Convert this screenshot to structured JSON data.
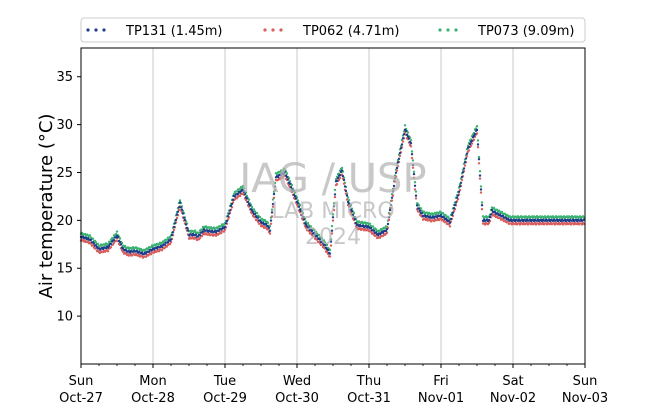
{
  "chart_data": {
    "type": "scatter",
    "title": "",
    "xlabel": "",
    "ylabel": "Air temperature (°C)",
    "xlim": [
      "2024-10-27",
      "2024-11-03"
    ],
    "ylim": [
      5,
      38
    ],
    "yticks": [
      10,
      15,
      20,
      25,
      30,
      35
    ],
    "xticks": [
      {
        "date": "2024-10-27",
        "line1": "Sun",
        "line2": "Oct-27"
      },
      {
        "date": "2024-10-28",
        "line1": "Mon",
        "line2": "Oct-28"
      },
      {
        "date": "2024-10-29",
        "line1": "Tue",
        "line2": "Oct-29"
      },
      {
        "date": "2024-10-30",
        "line1": "Wed",
        "line2": "Oct-30"
      },
      {
        "date": "2024-10-31",
        "line1": "Thu",
        "line2": "Oct-31"
      },
      {
        "date": "2024-11-01",
        "line1": "Fri",
        "line2": "Nov-01"
      },
      {
        "date": "2024-11-02",
        "line1": "Sat",
        "line2": "Nov-02"
      },
      {
        "date": "2024-11-03",
        "line1": "Sun",
        "line2": "Nov-03"
      }
    ],
    "grid": "vertical",
    "legend_position": "top",
    "series": [
      {
        "name": "TP131 (1.45m)",
        "color": "#1f3e8c",
        "x": [
          "2024-10-27 00:00",
          "2024-10-27 03:00",
          "2024-10-27 06:00",
          "2024-10-27 09:00",
          "2024-10-27 12:00",
          "2024-10-27 14:00",
          "2024-10-27 16:00",
          "2024-10-27 18:00",
          "2024-10-27 21:00",
          "2024-10-28 00:00",
          "2024-10-28 03:00",
          "2024-10-28 06:00",
          "2024-10-28 09:00",
          "2024-10-28 12:00",
          "2024-10-28 14:00",
          "2024-10-28 15:00",
          "2024-10-28 17:00",
          "2024-10-28 18:00",
          "2024-10-28 21:00",
          "2024-10-29 00:00",
          "2024-10-29 03:00",
          "2024-10-29 06:00",
          "2024-10-29 09:00",
          "2024-10-29 12:00",
          "2024-10-29 14:00",
          "2024-10-29 15:00",
          "2024-10-29 17:00",
          "2024-10-29 20:00",
          "2024-10-30 00:00",
          "2024-10-30 03:00",
          "2024-10-30 06:00",
          "2024-10-30 09:00",
          "2024-10-30 11:00",
          "2024-10-30 13:00",
          "2024-10-30 15:00",
          "2024-10-30 17:00",
          "2024-10-30 20:00",
          "2024-10-31 00:00",
          "2024-10-31 03:00",
          "2024-10-31 06:00",
          "2024-10-31 09:00",
          "2024-10-31 12:00",
          "2024-10-31 14:00",
          "2024-10-31 16:00",
          "2024-10-31 18:00",
          "2024-10-31 21:00",
          "2024-11-01 00:00",
          "2024-11-01 03:00",
          "2024-11-01 06:00",
          "2024-11-01 09:00",
          "2024-11-01 12:00",
          "2024-11-01 14:00",
          "2024-11-01 16:00",
          "2024-11-01 17:00",
          "2024-11-01 18:00",
          "2024-11-01 20:00",
          "2024-11-01 23:00",
          "2024-11-02 02:00",
          "2024-11-02 05:00",
          "2024-11-02 08:00",
          "2024-11-02 11:00",
          "2024-11-02 13:00",
          "2024-11-02 15:00",
          "2024-11-02 16:00",
          "2024-11-02 17:00",
          "2024-11-02 19:00",
          "2024-11-02 23:00",
          "2024-11-03 00:00"
        ],
        "y": [
          18.3,
          18.0,
          17.0,
          17.2,
          18.4,
          17.0,
          16.7,
          16.8,
          16.5,
          17.0,
          17.3,
          18.0,
          21.8,
          18.5,
          18.5,
          18.3,
          19.0,
          18.9,
          18.8,
          19.3,
          22.5,
          23.2,
          21.0,
          19.8,
          19.5,
          19.0,
          24.5,
          25.0,
          22.0,
          19.5,
          18.5,
          17.5,
          16.5,
          24.0,
          25.2,
          22.0,
          19.5,
          19.3,
          18.5,
          19.0,
          25.0,
          29.5,
          28.0,
          21.5,
          20.5,
          20.3,
          20.5,
          19.8,
          23.0,
          27.5,
          29.5,
          20.0,
          20.0,
          21.0,
          20.8,
          20.5,
          20.0,
          20.0,
          20.0,
          20.0,
          20.0,
          20.0,
          20.0,
          20.0,
          20.0,
          20.0,
          20.0,
          20.0
        ],
        "y_note": ""
      },
      {
        "name": "TP062 (4.71m)",
        "color": "#d95f5f",
        "x": [],
        "y": []
      },
      {
        "name": "TP073 (9.09m)",
        "color": "#3cb371",
        "x": [],
        "y": []
      }
    ],
    "watermark": {
      "line1": "IAG / USP",
      "line2": "LAB MICRO",
      "line3": "2024"
    }
  }
}
